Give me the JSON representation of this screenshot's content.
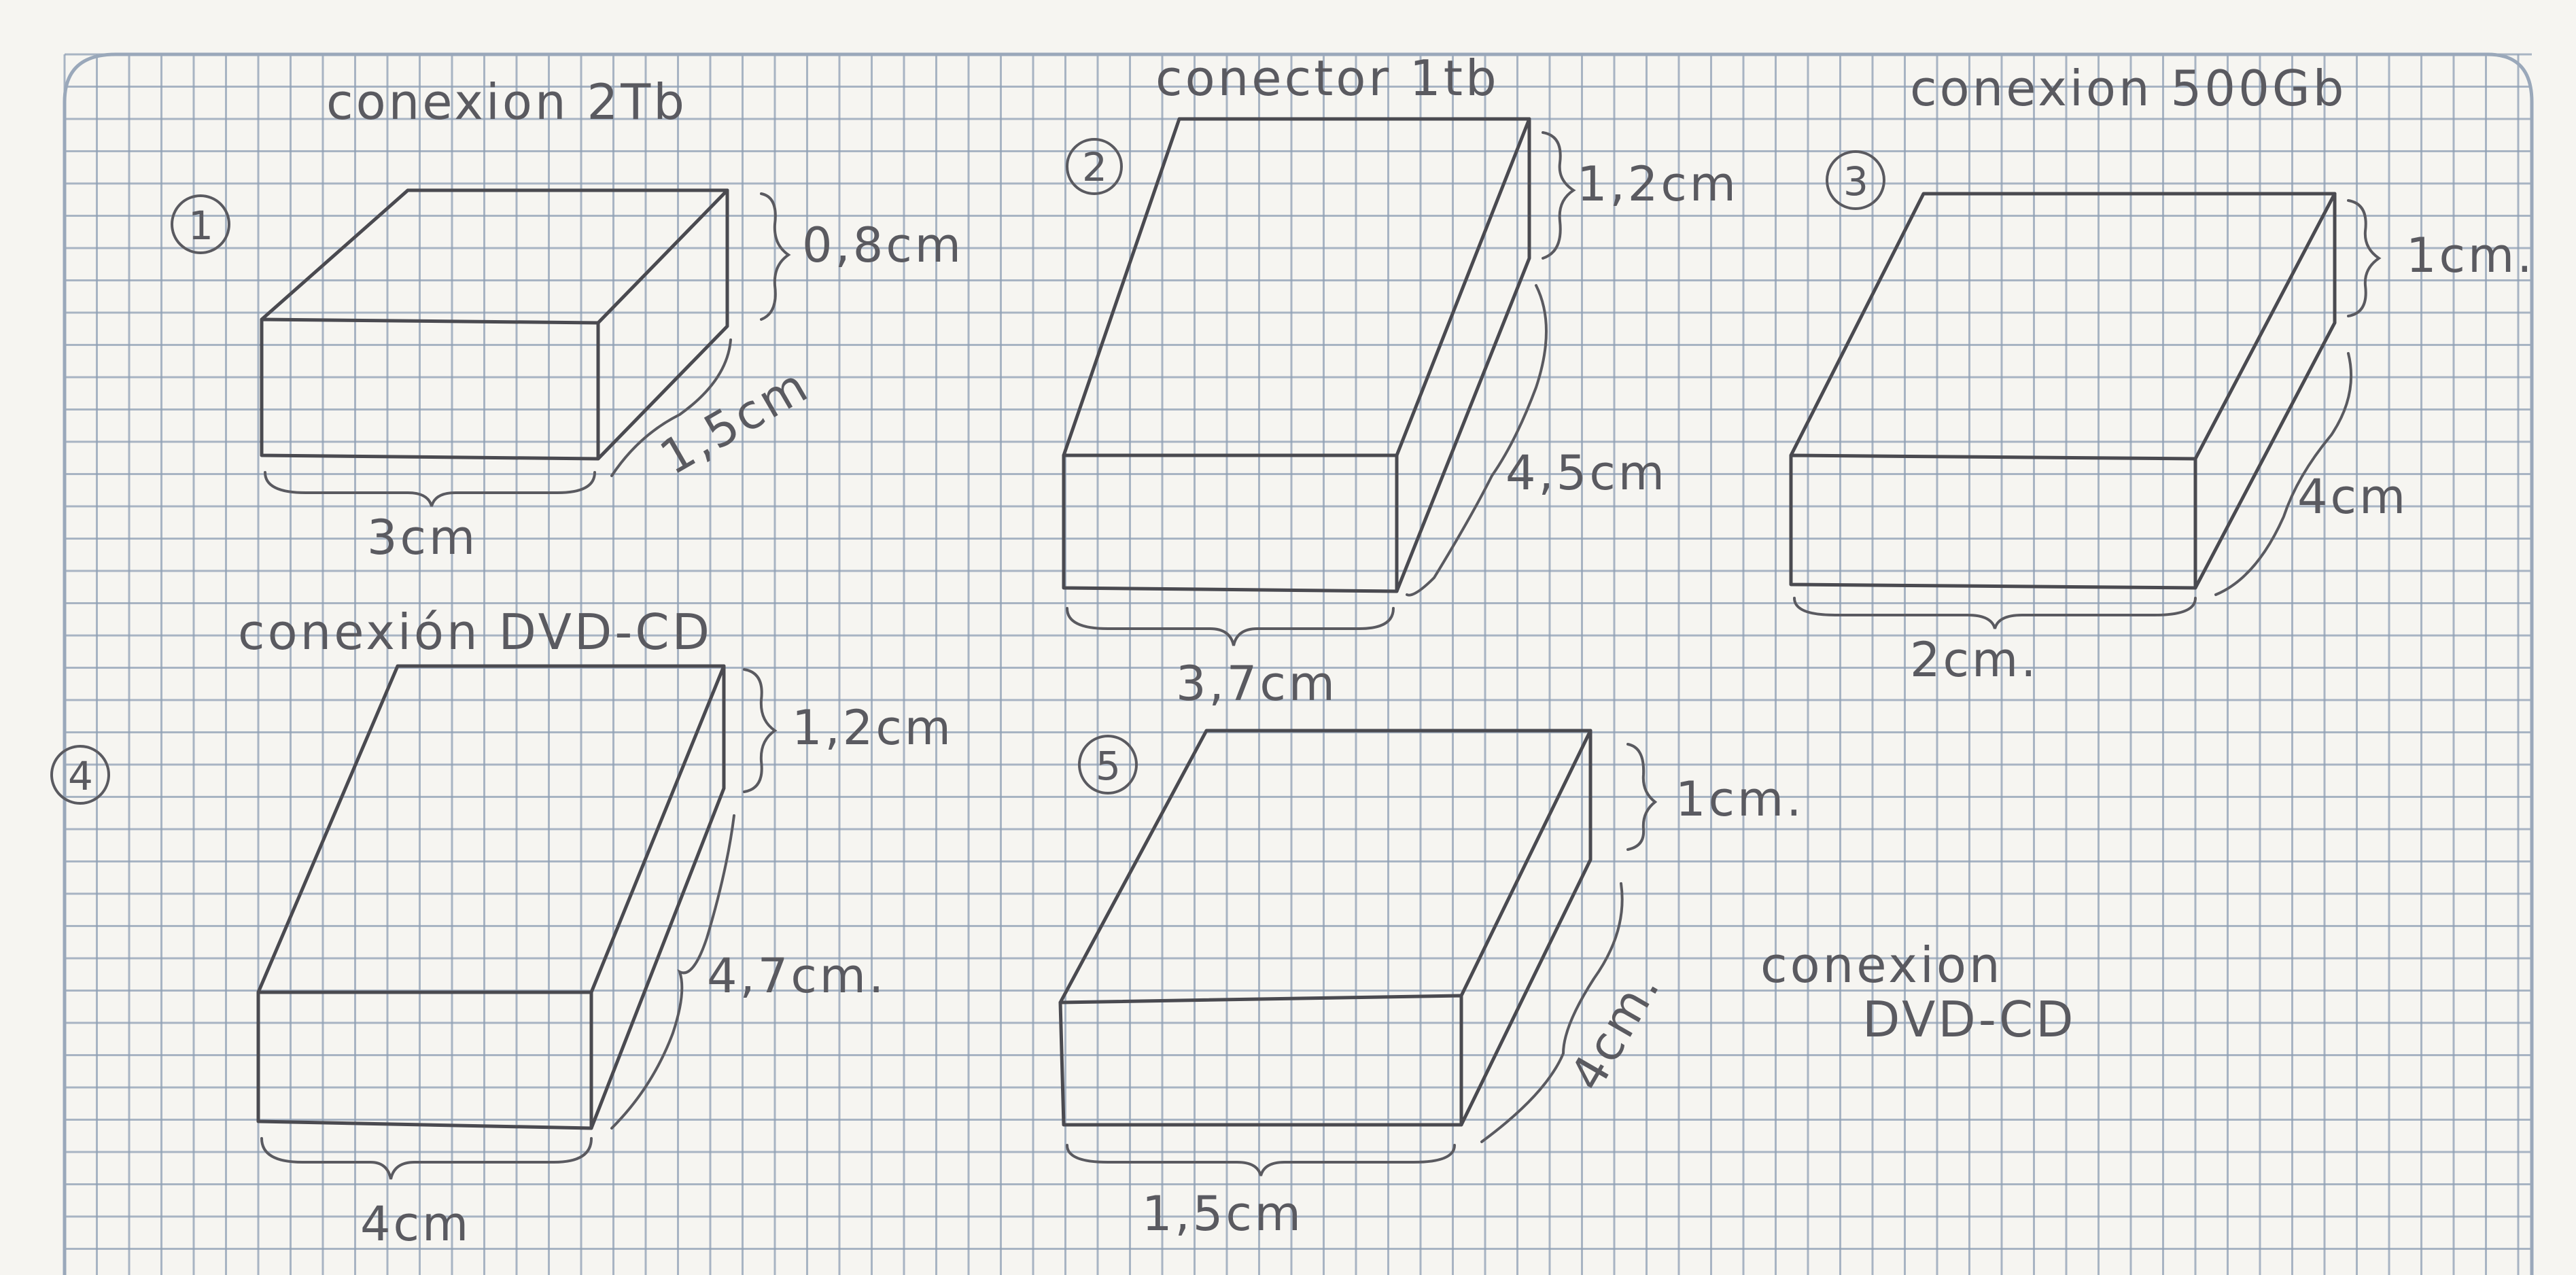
{
  "boxes": [
    {
      "number": "1",
      "title": "conexion 2Tb",
      "height": "0,8cm",
      "depth": "1,5cm",
      "width": "3cm"
    },
    {
      "number": "2",
      "title": "conector 1tb",
      "height": "1,2cm",
      "depth": "4,5cm",
      "width": "3,7cm"
    },
    {
      "number": "3",
      "title": "conexion 500Gb",
      "height": "1cm.",
      "depth": "4cm",
      "width": "2cm."
    },
    {
      "number": "4",
      "title": "conexión DVD-CD",
      "height": "1,2cm",
      "depth": "4,7cm.",
      "width": "4cm"
    },
    {
      "number": "5",
      "title": "conexion DVD-CD",
      "height": "1cm.",
      "depth": "4cm.",
      "width": "1,5cm"
    }
  ],
  "colors": {
    "paper": "#f6f5f1",
    "grid": "#8e9fb4",
    "pencil": "#4a4a50"
  }
}
